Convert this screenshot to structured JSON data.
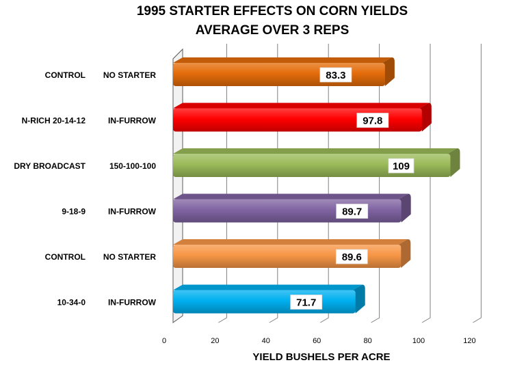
{
  "chart_data": {
    "type": "bar",
    "orientation": "horizontal",
    "title_line1": "1995 STARTER EFFECTS ON CORN YIELDS",
    "title_line2": "AVERAGE OVER 3 REPS",
    "xlabel": "YIELD BUSHELS PER ACRE",
    "ylabel": "",
    "xlim": [
      0,
      120
    ],
    "xticks": [
      0,
      20,
      40,
      60,
      80,
      100,
      120
    ],
    "grid": true,
    "legend": "none",
    "categories": [
      {
        "name": "CONTROL",
        "rate": "NO STARTER"
      },
      {
        "name": "N-RICH 20-14-12",
        "rate": "IN-FURROW"
      },
      {
        "name": "DRY BROADCAST",
        "rate": "150-100-100"
      },
      {
        "name": "9-18-9",
        "rate": "IN-FURROW"
      },
      {
        "name": "CONTROL",
        "rate": "NO STARTER"
      },
      {
        "name": "10-34-0",
        "rate": "IN-FURROW"
      }
    ],
    "values": [
      83.3,
      97.8,
      109,
      89.7,
      89.6,
      71.7
    ],
    "value_labels": [
      "83.3",
      "97.8",
      "109",
      "89.7",
      "89.6",
      "71.7"
    ],
    "colors": [
      "#E46C0A",
      "#FF0000",
      "#9BBB59",
      "#8064A2",
      "#F79646",
      "#00B0F0"
    ]
  }
}
